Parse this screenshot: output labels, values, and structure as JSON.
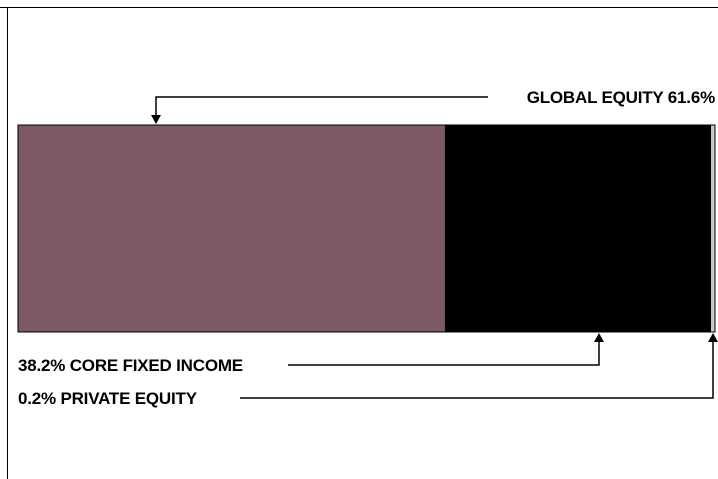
{
  "chart_data": {
    "type": "bar",
    "orientation": "horizontal-stacked",
    "unit": "%",
    "series": [
      {
        "name": "GLOBAL EQUITY",
        "value": 61.6,
        "color": "#7d5866"
      },
      {
        "name": "CORE FIXED INCOME",
        "value": 38.2,
        "color": "#000000"
      },
      {
        "name": "PRIVATE EQUITY",
        "value": 0.2,
        "color": "#c8c8c8"
      }
    ],
    "labels": {
      "global_equity": "GLOBAL EQUITY 61.6%",
      "core_fixed_income": "38.2% CORE FIXED INCOME",
      "private_equity": "0.2% PRIVATE EQUITY"
    }
  }
}
